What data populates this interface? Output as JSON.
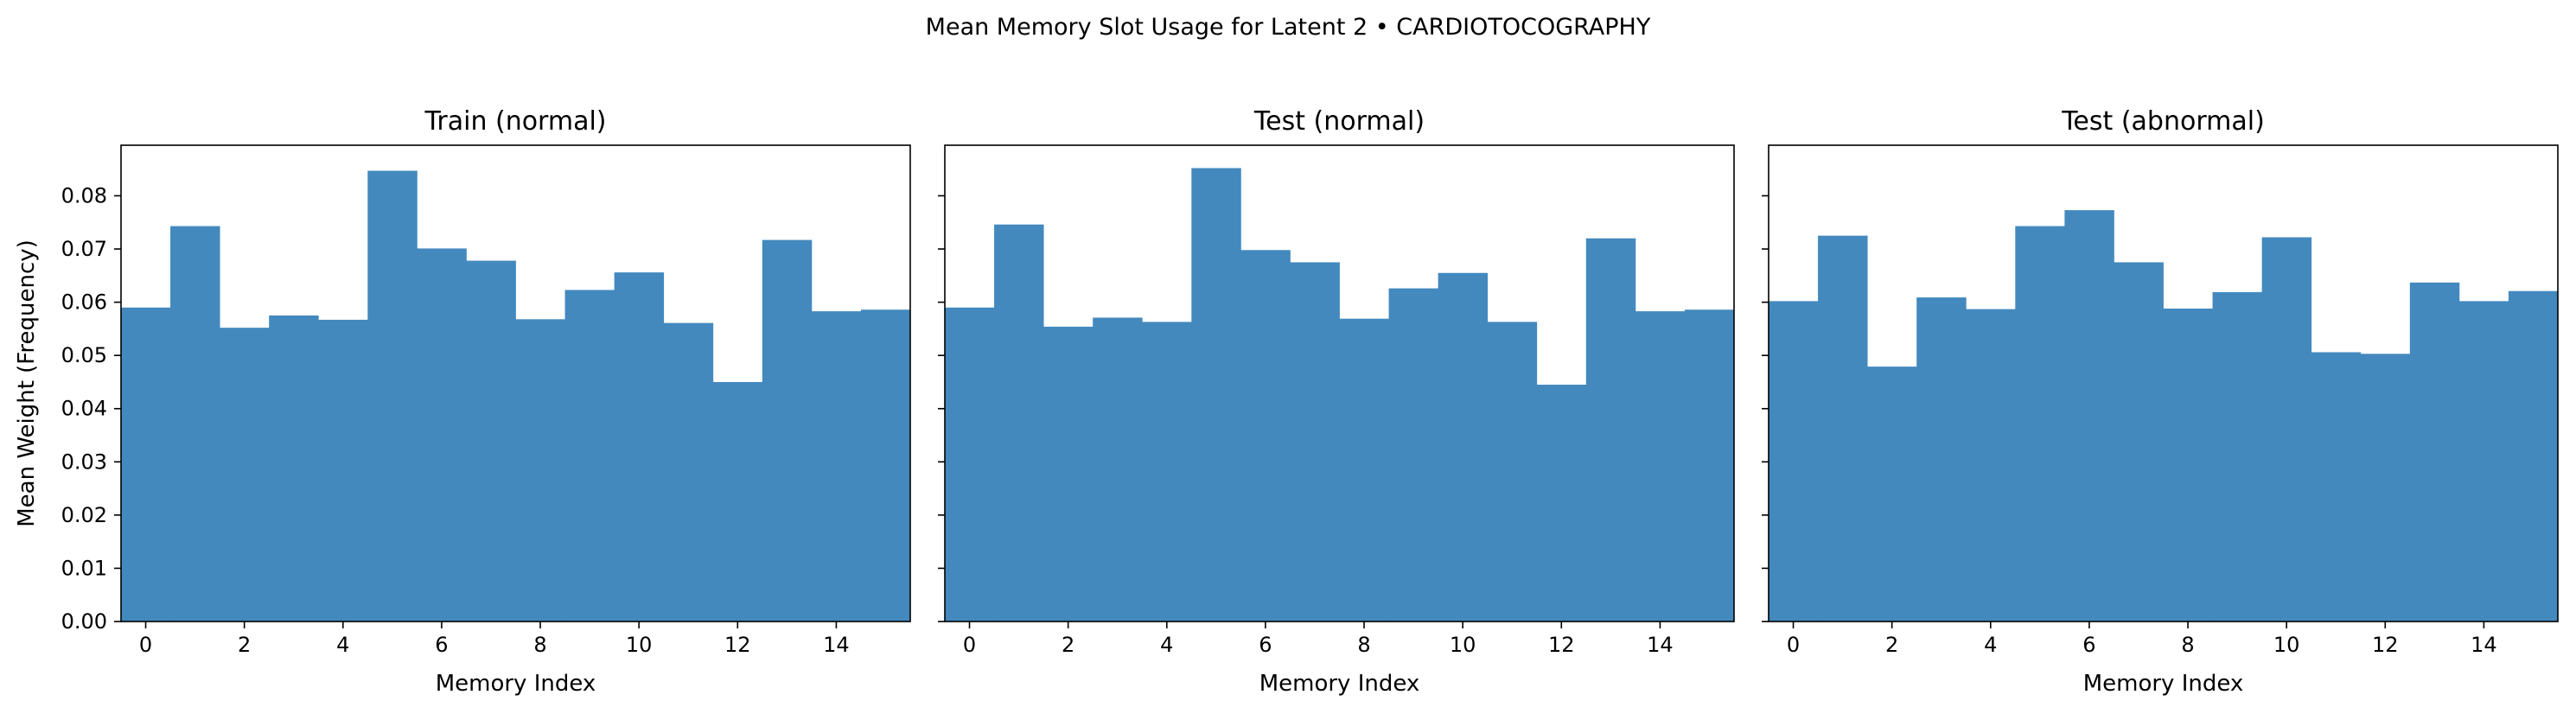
{
  "figure": {
    "suptitle": "Mean Memory Slot Usage for Latent 2 • CARDIOTOCOGRAPHY",
    "bar_color": "#4389be"
  },
  "chart_data": [
    {
      "type": "bar",
      "title": "Train (normal)",
      "xlabel": "Memory Index",
      "ylabel": "Mean Weight (Frequency)",
      "x": [
        0,
        1,
        2,
        3,
        4,
        5,
        6,
        7,
        8,
        9,
        10,
        11,
        12,
        13,
        14,
        15
      ],
      "values": [
        0.059,
        0.0743,
        0.0552,
        0.0575,
        0.0567,
        0.0847,
        0.0701,
        0.0678,
        0.0568,
        0.0623,
        0.0656,
        0.0561,
        0.045,
        0.0717,
        0.0583,
        0.0586
      ],
      "xlim": [
        -0.5,
        15.5
      ],
      "ylim": [
        0,
        0.0895
      ],
      "xticks": [
        0,
        2,
        4,
        6,
        8,
        10,
        12,
        14
      ],
      "xtick_labels": [
        "0",
        "2",
        "4",
        "6",
        "8",
        "10",
        "12",
        "14"
      ],
      "yticks": [
        0,
        0.01,
        0.02,
        0.03,
        0.04,
        0.05,
        0.06,
        0.07,
        0.08
      ],
      "ytick_labels": [
        "0.00",
        "0.01",
        "0.02",
        "0.03",
        "0.04",
        "0.05",
        "0.06",
        "0.07",
        "0.08"
      ],
      "show_yticklabels": true,
      "grid": false
    },
    {
      "type": "bar",
      "title": "Test (normal)",
      "xlabel": "Memory Index",
      "ylabel": "",
      "x": [
        0,
        1,
        2,
        3,
        4,
        5,
        6,
        7,
        8,
        9,
        10,
        11,
        12,
        13,
        14,
        15
      ],
      "values": [
        0.059,
        0.0746,
        0.0554,
        0.0571,
        0.0563,
        0.0852,
        0.0698,
        0.0675,
        0.0569,
        0.0626,
        0.0655,
        0.0563,
        0.0445,
        0.072,
        0.0583,
        0.0586
      ],
      "xlim": [
        -0.5,
        15.5
      ],
      "ylim": [
        0,
        0.0895
      ],
      "xticks": [
        0,
        2,
        4,
        6,
        8,
        10,
        12,
        14
      ],
      "xtick_labels": [
        "0",
        "2",
        "4",
        "6",
        "8",
        "10",
        "12",
        "14"
      ],
      "yticks": [
        0,
        0.01,
        0.02,
        0.03,
        0.04,
        0.05,
        0.06,
        0.07,
        0.08
      ],
      "ytick_labels": [
        "0.00",
        "0.01",
        "0.02",
        "0.03",
        "0.04",
        "0.05",
        "0.06",
        "0.07",
        "0.08"
      ],
      "show_yticklabels": false,
      "grid": false
    },
    {
      "type": "bar",
      "title": "Test (abnormal)",
      "xlabel": "Memory Index",
      "ylabel": "",
      "x": [
        0,
        1,
        2,
        3,
        4,
        5,
        6,
        7,
        8,
        9,
        10,
        11,
        12,
        13,
        14,
        15
      ],
      "values": [
        0.0602,
        0.0725,
        0.0479,
        0.0609,
        0.0587,
        0.0743,
        0.0773,
        0.0675,
        0.0588,
        0.0619,
        0.0722,
        0.0506,
        0.0503,
        0.0637,
        0.0602,
        0.0621
      ],
      "xlim": [
        -0.5,
        15.5
      ],
      "ylim": [
        0,
        0.0895
      ],
      "xticks": [
        0,
        2,
        4,
        6,
        8,
        10,
        12,
        14
      ],
      "xtick_labels": [
        "0",
        "2",
        "4",
        "6",
        "8",
        "10",
        "12",
        "14"
      ],
      "yticks": [
        0,
        0.01,
        0.02,
        0.03,
        0.04,
        0.05,
        0.06,
        0.07,
        0.08
      ],
      "ytick_labels": [
        "0.00",
        "0.01",
        "0.02",
        "0.03",
        "0.04",
        "0.05",
        "0.06",
        "0.07",
        "0.08"
      ],
      "show_yticklabels": false,
      "grid": false
    }
  ]
}
